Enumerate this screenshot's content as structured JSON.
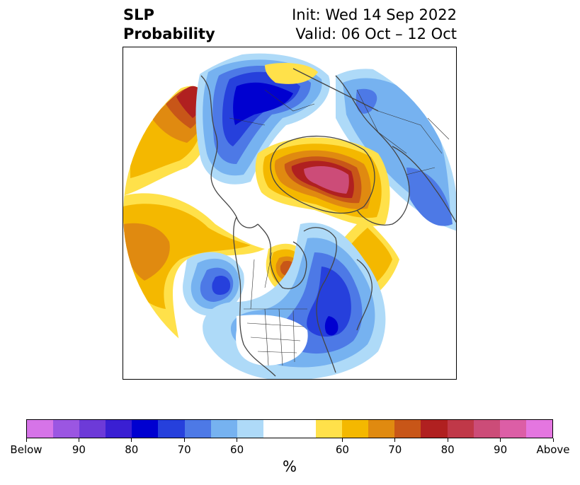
{
  "title": {
    "left_line1": "SLP",
    "left_line2": "Probability",
    "right_line1": "Init: Wed 14 Sep 2022",
    "right_line2": "Valid: 06 Oct – 12 Oct"
  },
  "colorbar": {
    "colors": [
      "#d674e8",
      "#9b56e2",
      "#6d3ad8",
      "#3a1fd3",
      "#0000d0",
      "#2640dc",
      "#4d79e6",
      "#76b2f0",
      "#aedaf8",
      "#ffffff",
      "#ffffff",
      "#ffe14a",
      "#f4b800",
      "#e08a10",
      "#c85618",
      "#b02020",
      "#c03848",
      "#cc4c78",
      "#dc5ea6",
      "#e476e0"
    ],
    "tick_labels": [
      "Below",
      "90",
      "80",
      "70",
      "60",
      "60",
      "70",
      "80",
      "90",
      "Above"
    ],
    "unit": "%"
  },
  "map": {
    "projection": "north-polar-stereographic",
    "field": "sea level pressure tercile probability",
    "coastline_color": "#444444",
    "land_border_color": "#333333"
  }
}
